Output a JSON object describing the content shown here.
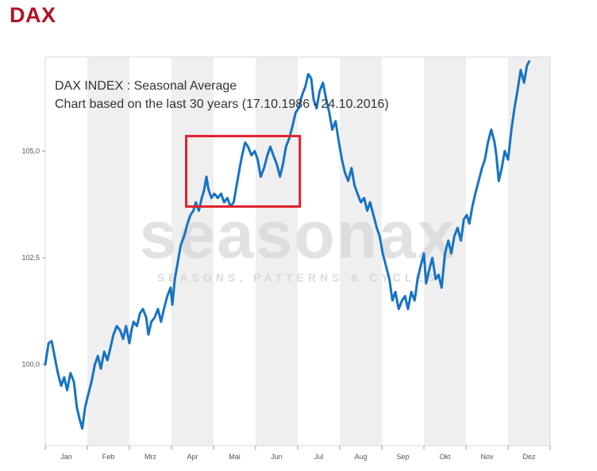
{
  "header": {
    "title": "DAX"
  },
  "caption": {
    "line1": "DAX INDEX : Seasonal Average",
    "line2": "Chart based on the last 30 years (17.10.1986 - 24.10.2016)"
  },
  "watermark": {
    "brand": "seasonax",
    "tagline": "SEASONS, PATTERNS & CYCLES"
  },
  "colors": {
    "title": "#b11226",
    "line": "#1873c2",
    "highlight_box": "#e0202a",
    "band": "#efefef",
    "axis_text": "#555555"
  },
  "chart_data": {
    "type": "line",
    "title": "DAX INDEX : Seasonal Average",
    "subtitle": "Chart based on the last 30 years (17.10.1986 - 24.10.2016)",
    "xlabel": "",
    "ylabel": "",
    "x_ticks": [
      "Jan",
      "Feb",
      "Mrz",
      "Apr",
      "Mai",
      "Jun",
      "Jul",
      "Aug",
      "Sep",
      "Okt",
      "Nov",
      "Dez"
    ],
    "y_ticks": [
      "100,0",
      "102,5",
      "105,0"
    ],
    "y_tick_values": [
      100.0,
      102.5,
      105.0
    ],
    "ylim": [
      98.1,
      107.2
    ],
    "xlim": [
      0,
      12
    ],
    "x_unit": "month index (0 = start of Jan, 12 = end of Dez)",
    "grid": "alternating monthly bands",
    "highlight": {
      "x_range": [
        3.35,
        6.05
      ],
      "y_range": [
        103.7,
        105.35
      ]
    },
    "series": [
      {
        "values": [
          [
            0.0,
            100.0
          ],
          [
            0.08,
            100.5
          ],
          [
            0.15,
            100.55
          ],
          [
            0.22,
            100.2
          ],
          [
            0.3,
            99.8
          ],
          [
            0.38,
            99.5
          ],
          [
            0.45,
            99.7
          ],
          [
            0.52,
            99.4
          ],
          [
            0.6,
            99.8
          ],
          [
            0.68,
            99.6
          ],
          [
            0.75,
            99.0
          ],
          [
            0.82,
            98.7
          ],
          [
            0.88,
            98.5
          ],
          [
            0.95,
            99.0
          ],
          [
            1.02,
            99.3
          ],
          [
            1.1,
            99.6
          ],
          [
            1.18,
            100.0
          ],
          [
            1.25,
            100.2
          ],
          [
            1.32,
            99.9
          ],
          [
            1.4,
            100.3
          ],
          [
            1.48,
            100.1
          ],
          [
            1.55,
            100.4
          ],
          [
            1.62,
            100.7
          ],
          [
            1.7,
            100.9
          ],
          [
            1.78,
            100.8
          ],
          [
            1.85,
            100.6
          ],
          [
            1.92,
            100.9
          ],
          [
            2.0,
            100.5
          ],
          [
            2.05,
            100.8
          ],
          [
            2.1,
            101.0
          ],
          [
            2.18,
            100.9
          ],
          [
            2.25,
            101.2
          ],
          [
            2.32,
            101.3
          ],
          [
            2.4,
            101.1
          ],
          [
            2.45,
            100.7
          ],
          [
            2.52,
            101.0
          ],
          [
            2.6,
            101.1
          ],
          [
            2.68,
            101.3
          ],
          [
            2.75,
            101.0
          ],
          [
            2.82,
            101.3
          ],
          [
            2.9,
            101.6
          ],
          [
            2.98,
            101.8
          ],
          [
            3.02,
            101.4
          ],
          [
            3.08,
            102.0
          ],
          [
            3.15,
            102.4
          ],
          [
            3.22,
            102.8
          ],
          [
            3.3,
            103.0
          ],
          [
            3.38,
            103.3
          ],
          [
            3.45,
            103.5
          ],
          [
            3.52,
            103.6
          ],
          [
            3.58,
            103.8
          ],
          [
            3.65,
            103.6
          ],
          [
            3.72,
            103.9
          ],
          [
            3.78,
            104.1
          ],
          [
            3.83,
            104.4
          ],
          [
            3.88,
            104.1
          ],
          [
            3.95,
            103.9
          ],
          [
            4.02,
            104.0
          ],
          [
            4.1,
            103.9
          ],
          [
            4.18,
            104.0
          ],
          [
            4.25,
            103.8
          ],
          [
            4.33,
            103.9
          ],
          [
            4.4,
            103.7
          ],
          [
            4.48,
            103.8
          ],
          [
            4.55,
            104.2
          ],
          [
            4.62,
            104.6
          ],
          [
            4.68,
            104.9
          ],
          [
            4.75,
            105.2
          ],
          [
            4.82,
            105.1
          ],
          [
            4.9,
            104.9
          ],
          [
            4.98,
            105.0
          ],
          [
            5.05,
            104.8
          ],
          [
            5.12,
            104.4
          ],
          [
            5.2,
            104.6
          ],
          [
            5.28,
            104.9
          ],
          [
            5.35,
            105.1
          ],
          [
            5.42,
            104.9
          ],
          [
            5.5,
            104.7
          ],
          [
            5.58,
            104.4
          ],
          [
            5.65,
            104.7
          ],
          [
            5.72,
            105.1
          ],
          [
            5.8,
            105.3
          ],
          [
            5.88,
            105.6
          ],
          [
            5.95,
            105.9
          ],
          [
            6.02,
            106.0
          ],
          [
            6.1,
            106.3
          ],
          [
            6.18,
            106.5
          ],
          [
            6.25,
            106.8
          ],
          [
            6.32,
            106.7
          ],
          [
            6.38,
            106.2
          ],
          [
            6.45,
            106.0
          ],
          [
            6.52,
            106.4
          ],
          [
            6.6,
            106.6
          ],
          [
            6.68,
            106.2
          ],
          [
            6.75,
            105.9
          ],
          [
            6.82,
            105.5
          ],
          [
            6.9,
            105.7
          ],
          [
            6.98,
            105.2
          ],
          [
            7.05,
            104.8
          ],
          [
            7.12,
            104.5
          ],
          [
            7.2,
            104.3
          ],
          [
            7.28,
            104.6
          ],
          [
            7.35,
            104.2
          ],
          [
            7.42,
            104.0
          ],
          [
            7.5,
            103.8
          ],
          [
            7.58,
            103.9
          ],
          [
            7.65,
            103.6
          ],
          [
            7.72,
            103.8
          ],
          [
            7.8,
            103.5
          ],
          [
            7.88,
            103.2
          ],
          [
            7.95,
            103.0
          ],
          [
            8.02,
            102.6
          ],
          [
            8.1,
            102.3
          ],
          [
            8.18,
            102.0
          ],
          [
            8.25,
            101.5
          ],
          [
            8.32,
            101.7
          ],
          [
            8.4,
            101.3
          ],
          [
            8.48,
            101.5
          ],
          [
            8.55,
            101.6
          ],
          [
            8.62,
            101.3
          ],
          [
            8.7,
            101.7
          ],
          [
            8.78,
            101.5
          ],
          [
            8.85,
            102.0
          ],
          [
            8.92,
            102.3
          ],
          [
            9.0,
            102.6
          ],
          [
            9.05,
            101.9
          ],
          [
            9.12,
            102.2
          ],
          [
            9.2,
            102.5
          ],
          [
            9.28,
            102.0
          ],
          [
            9.35,
            102.1
          ],
          [
            9.42,
            101.8
          ],
          [
            9.5,
            102.6
          ],
          [
            9.58,
            102.9
          ],
          [
            9.65,
            102.6
          ],
          [
            9.72,
            103.0
          ],
          [
            9.8,
            103.2
          ],
          [
            9.88,
            102.9
          ],
          [
            9.95,
            103.4
          ],
          [
            10.02,
            103.5
          ],
          [
            10.08,
            103.3
          ],
          [
            10.15,
            103.7
          ],
          [
            10.22,
            104.0
          ],
          [
            10.3,
            104.3
          ],
          [
            10.38,
            104.6
          ],
          [
            10.45,
            104.8
          ],
          [
            10.52,
            105.2
          ],
          [
            10.6,
            105.5
          ],
          [
            10.68,
            105.2
          ],
          [
            10.72,
            104.9
          ],
          [
            10.78,
            104.3
          ],
          [
            10.85,
            104.6
          ],
          [
            10.92,
            105.0
          ],
          [
            11.0,
            104.8
          ],
          [
            11.08,
            105.5
          ],
          [
            11.15,
            106.0
          ],
          [
            11.22,
            106.4
          ],
          [
            11.3,
            106.9
          ],
          [
            11.38,
            106.6
          ],
          [
            11.45,
            107.0
          ],
          [
            11.5,
            107.1
          ]
        ]
      }
    ]
  }
}
